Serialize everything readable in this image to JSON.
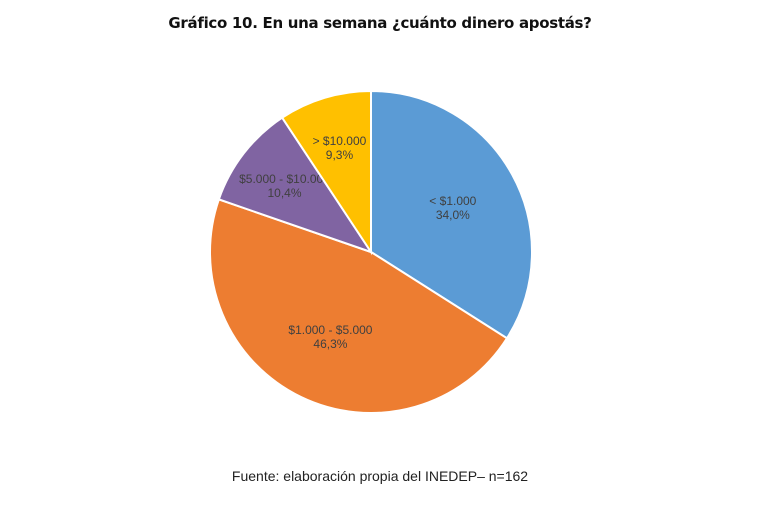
{
  "chart_data": {
    "type": "pie",
    "title": "Gráfico 10. En una semana ¿cuánto dinero apostás?",
    "start_angle": "top, clockwise",
    "slices": [
      {
        "label": "< $1.000",
        "value": 34.0,
        "value_label": "34,0%",
        "color": "#5B9BD5"
      },
      {
        "label": "$1.000 - $5.000",
        "value": 46.3,
        "value_label": "46,3%",
        "color": "#ED7D31"
      },
      {
        "label": "$5.000 - $10.000",
        "value": 10.4,
        "value_label": "10,4%",
        "color": "#8064A2"
      },
      {
        "label": "> $10.000",
        "value": 9.3,
        "value_label": "9,3%",
        "color": "#FFC000"
      }
    ],
    "source": "Fuente: elaboración propia del INEDEP– n=162"
  }
}
